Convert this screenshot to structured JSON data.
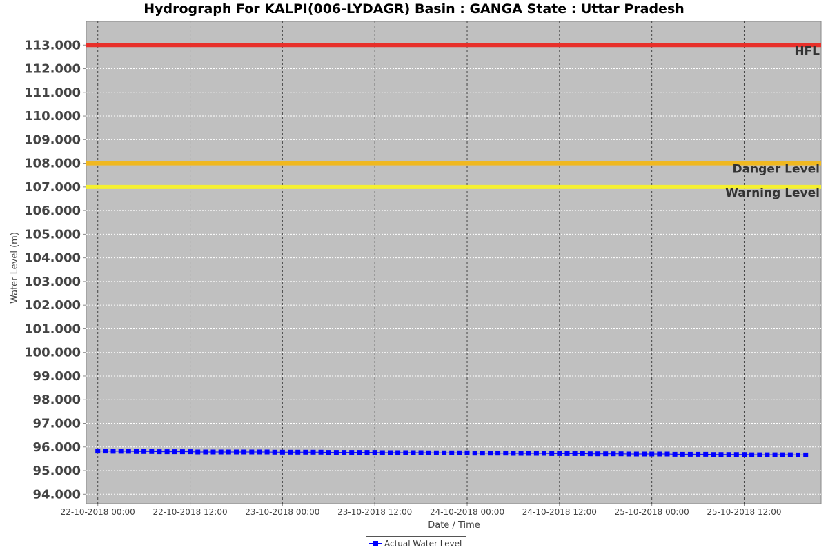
{
  "chart_data": {
    "type": "line",
    "title": "Hydrograph For KALPI(006-LYDAGR) Basin : GANGA State : Uttar Pradesh",
    "xlabel": "Date / Time",
    "ylabel": "Water Level (m)",
    "ylim": [
      93.6,
      114.0
    ],
    "xlim": [
      "2018-10-21T22:30",
      "2018-10-25T22:00"
    ],
    "y_ticks": [
      "94.000",
      "95.000",
      "96.000",
      "97.000",
      "98.000",
      "99.000",
      "100.000",
      "101.000",
      "102.000",
      "103.000",
      "104.000",
      "105.000",
      "106.000",
      "107.000",
      "108.000",
      "109.000",
      "110.000",
      "111.000",
      "112.000",
      "113.000"
    ],
    "x_ticks": [
      {
        "t": "2018-10-22T00:00",
        "label": "22-10-2018 00:00"
      },
      {
        "t": "2018-10-22T12:00",
        "label": "22-10-2018 12:00"
      },
      {
        "t": "2018-10-23T00:00",
        "label": "23-10-2018 00:00"
      },
      {
        "t": "2018-10-23T12:00",
        "label": "23-10-2018 12:00"
      },
      {
        "t": "2018-10-24T00:00",
        "label": "24-10-2018 00:00"
      },
      {
        "t": "2018-10-24T12:00",
        "label": "24-10-2018 12:00"
      },
      {
        "t": "2018-10-25T00:00",
        "label": "25-10-2018 00:00"
      },
      {
        "t": "2018-10-25T12:00",
        "label": "25-10-2018 12:00"
      }
    ],
    "grid": true,
    "background_color": "#c0c0c0",
    "reference_lines": [
      {
        "name": "HFL",
        "value": 113.0,
        "color": "#e8302a"
      },
      {
        "name": "Danger Level",
        "value": 108.0,
        "color": "#f0b820"
      },
      {
        "name": "Warning Level",
        "value": 107.0,
        "color": "#f5f030"
      }
    ],
    "series": [
      {
        "name": "Actual Water Level",
        "color": "#0000ff",
        "marker": "square",
        "points": [
          [
            "2018-10-22T00:00",
            95.83
          ],
          [
            "2018-10-22T01:00",
            95.83
          ],
          [
            "2018-10-22T02:00",
            95.82
          ],
          [
            "2018-10-22T03:00",
            95.82
          ],
          [
            "2018-10-22T04:00",
            95.82
          ],
          [
            "2018-10-22T05:00",
            95.81
          ],
          [
            "2018-10-22T06:00",
            95.81
          ],
          [
            "2018-10-22T07:00",
            95.81
          ],
          [
            "2018-10-22T08:00",
            95.8
          ],
          [
            "2018-10-22T09:00",
            95.8
          ],
          [
            "2018-10-22T10:00",
            95.8
          ],
          [
            "2018-10-22T11:00",
            95.8
          ],
          [
            "2018-10-22T12:00",
            95.8
          ],
          [
            "2018-10-22T13:00",
            95.79
          ],
          [
            "2018-10-22T14:00",
            95.79
          ],
          [
            "2018-10-22T15:00",
            95.79
          ],
          [
            "2018-10-22T16:00",
            95.79
          ],
          [
            "2018-10-22T17:00",
            95.79
          ],
          [
            "2018-10-22T18:00",
            95.79
          ],
          [
            "2018-10-22T19:00",
            95.79
          ],
          [
            "2018-10-22T20:00",
            95.79
          ],
          [
            "2018-10-22T21:00",
            95.79
          ],
          [
            "2018-10-22T22:00",
            95.79
          ],
          [
            "2018-10-22T23:00",
            95.78
          ],
          [
            "2018-10-23T00:00",
            95.78
          ],
          [
            "2018-10-23T01:00",
            95.78
          ],
          [
            "2018-10-23T02:00",
            95.78
          ],
          [
            "2018-10-23T03:00",
            95.78
          ],
          [
            "2018-10-23T04:00",
            95.78
          ],
          [
            "2018-10-23T05:00",
            95.78
          ],
          [
            "2018-10-23T06:00",
            95.77
          ],
          [
            "2018-10-23T07:00",
            95.77
          ],
          [
            "2018-10-23T08:00",
            95.77
          ],
          [
            "2018-10-23T09:00",
            95.77
          ],
          [
            "2018-10-23T10:00",
            95.77
          ],
          [
            "2018-10-23T11:00",
            95.77
          ],
          [
            "2018-10-23T12:00",
            95.77
          ],
          [
            "2018-10-23T13:00",
            95.76
          ],
          [
            "2018-10-23T14:00",
            95.76
          ],
          [
            "2018-10-23T15:00",
            95.76
          ],
          [
            "2018-10-23T16:00",
            95.76
          ],
          [
            "2018-10-23T17:00",
            95.76
          ],
          [
            "2018-10-23T18:00",
            95.76
          ],
          [
            "2018-10-23T19:00",
            95.75
          ],
          [
            "2018-10-23T20:00",
            95.75
          ],
          [
            "2018-10-23T21:00",
            95.75
          ],
          [
            "2018-10-23T22:00",
            95.75
          ],
          [
            "2018-10-23T23:00",
            95.75
          ],
          [
            "2018-10-24T00:00",
            95.75
          ],
          [
            "2018-10-24T01:00",
            95.74
          ],
          [
            "2018-10-24T02:00",
            95.74
          ],
          [
            "2018-10-24T03:00",
            95.74
          ],
          [
            "2018-10-24T04:00",
            95.74
          ],
          [
            "2018-10-24T05:00",
            95.74
          ],
          [
            "2018-10-24T06:00",
            95.73
          ],
          [
            "2018-10-24T07:00",
            95.73
          ],
          [
            "2018-10-24T08:00",
            95.73
          ],
          [
            "2018-10-24T09:00",
            95.73
          ],
          [
            "2018-10-24T10:00",
            95.73
          ],
          [
            "2018-10-24T11:00",
            95.72
          ],
          [
            "2018-10-24T12:00",
            95.72
          ],
          [
            "2018-10-24T13:00",
            95.72
          ],
          [
            "2018-10-24T14:00",
            95.72
          ],
          [
            "2018-10-24T15:00",
            95.72
          ],
          [
            "2018-10-24T16:00",
            95.71
          ],
          [
            "2018-10-24T17:00",
            95.71
          ],
          [
            "2018-10-24T18:00",
            95.71
          ],
          [
            "2018-10-24T19:00",
            95.71
          ],
          [
            "2018-10-24T20:00",
            95.71
          ],
          [
            "2018-10-24T21:00",
            95.7
          ],
          [
            "2018-10-24T22:00",
            95.7
          ],
          [
            "2018-10-24T23:00",
            95.7
          ],
          [
            "2018-10-25T00:00",
            95.7
          ],
          [
            "2018-10-25T01:00",
            95.7
          ],
          [
            "2018-10-25T02:00",
            95.7
          ],
          [
            "2018-10-25T03:00",
            95.69
          ],
          [
            "2018-10-25T04:00",
            95.69
          ],
          [
            "2018-10-25T05:00",
            95.69
          ],
          [
            "2018-10-25T06:00",
            95.69
          ],
          [
            "2018-10-25T07:00",
            95.69
          ],
          [
            "2018-10-25T08:00",
            95.68
          ],
          [
            "2018-10-25T09:00",
            95.68
          ],
          [
            "2018-10-25T10:00",
            95.68
          ],
          [
            "2018-10-25T11:00",
            95.68
          ],
          [
            "2018-10-25T12:00",
            95.68
          ],
          [
            "2018-10-25T13:00",
            95.67
          ],
          [
            "2018-10-25T14:00",
            95.67
          ],
          [
            "2018-10-25T15:00",
            95.67
          ],
          [
            "2018-10-25T16:00",
            95.67
          ],
          [
            "2018-10-25T17:00",
            95.67
          ],
          [
            "2018-10-25T18:00",
            95.67
          ],
          [
            "2018-10-25T19:00",
            95.66
          ],
          [
            "2018-10-25T20:00",
            95.66
          ]
        ]
      }
    ]
  },
  "legend": {
    "label": "Actual Water Level"
  }
}
